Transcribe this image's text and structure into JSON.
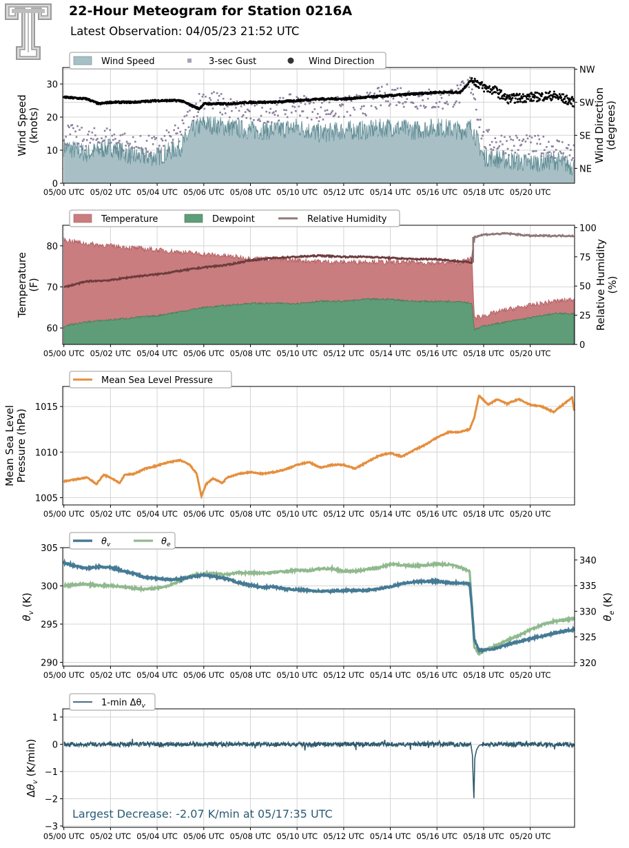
{
  "header": {
    "title": "22-Hour Meteogram for Station 0216A",
    "subtitle": "Latest Observation: 04/05/23 21:52 UTC",
    "logo_letter": "T"
  },
  "colors": {
    "wind_speed_fill": "#a7bfc5",
    "wind_speed_line": "#5f8c94",
    "gust": "#8a7e9c",
    "wind_dir": "#000000",
    "temperature": "#c97d7f",
    "temperature_edge": "#b05a5e",
    "dewpoint": "#5e9d78",
    "dewpoint_edge": "#3f7a56",
    "rh": "#8f7878",
    "rh_dark": "#6e3c3c",
    "mslp": "#e58e3c",
    "theta_v": "#457a94",
    "theta_e": "#90b98e",
    "dtheta": "#2f5a6e",
    "annotation": "#2a5a74"
  },
  "x_tick_labels": [
    "05/00 UTC",
    "05/02 UTC",
    "05/04 UTC",
    "05/06 UTC",
    "05/08 UTC",
    "05/10 UTC",
    "05/12 UTC",
    "05/14 UTC",
    "05/16 UTC",
    "05/18 UTC",
    "05/20 UTC"
  ],
  "chart_data": [
    {
      "type": "line",
      "id": "wind",
      "x_unit": "hours since 05/00 UTC",
      "xlim": [
        -0.05,
        21.9
      ],
      "ylim": [
        0,
        35
      ],
      "ylabel": "Wind Speed\n(knots)",
      "y_ticks": [
        0,
        10,
        20,
        30
      ],
      "y2label": "Wind Direction\n(degrees)",
      "y2_ticks": [
        "NE",
        "SE",
        "SW",
        "NW"
      ],
      "y2_tick_values": [
        0,
        1,
        2,
        3
      ],
      "y2lim": [
        -0.45,
        3.05
      ],
      "legend": [
        "Wind Speed",
        "3-sec Gust",
        "Wind Direction"
      ],
      "legend_position": "top-left",
      "grid": true,
      "series": [
        {
          "name": "Wind Speed",
          "x": [
            0,
            1,
            2,
            3,
            4,
            5,
            5.5,
            6,
            7,
            8,
            9,
            10,
            11,
            12,
            13,
            14,
            15,
            16,
            17,
            17.5,
            18,
            19,
            20,
            21,
            21.9
          ],
          "values": [
            11,
            9,
            11,
            8,
            8,
            11,
            16,
            18,
            17,
            16,
            16,
            17,
            15,
            16,
            16,
            17,
            16,
            17,
            16,
            17,
            8,
            7,
            6,
            7,
            5
          ]
        },
        {
          "name": "3-sec Gust",
          "x": [
            0,
            1,
            2,
            3,
            4,
            5,
            5.5,
            6,
            7,
            8,
            9,
            10,
            11,
            12,
            13,
            14,
            15,
            16,
            17,
            17.5,
            18,
            19,
            20,
            21,
            21.9
          ],
          "values": [
            15,
            13,
            14,
            11,
            11,
            15,
            22,
            26,
            23,
            21,
            22,
            24,
            22,
            23,
            24,
            27,
            26,
            25,
            27,
            30,
            13,
            12,
            11,
            11,
            9
          ]
        },
        {
          "name": "Wind Direction",
          "x": [
            0,
            1,
            1.5,
            2,
            3,
            4,
            5,
            5.8,
            6,
            7,
            8,
            9,
            10,
            11,
            12,
            13,
            14,
            15,
            16,
            17,
            17.5,
            18,
            18.5,
            19,
            20,
            21,
            21.9
          ],
          "values": [
            2.15,
            2.1,
            1.95,
            2.0,
            2.0,
            2.05,
            2.05,
            1.8,
            1.95,
            1.95,
            2.0,
            2.0,
            2.05,
            2.1,
            2.1,
            2.15,
            2.2,
            2.25,
            2.3,
            2.3,
            2.7,
            2.45,
            2.35,
            2.1,
            2.15,
            2.2,
            2.0
          ]
        }
      ]
    },
    {
      "type": "area",
      "id": "thermo",
      "x_unit": "hours since 05/00 UTC",
      "xlim": [
        -0.05,
        21.9
      ],
      "ylim": [
        56,
        85
      ],
      "ylabel": "Temperature\n(F)",
      "y_ticks": [
        60,
        70,
        80
      ],
      "y2label": "Relative Humidity\n(%)",
      "y2lim": [
        0,
        102
      ],
      "y2_ticks": [
        0,
        25,
        50,
        75,
        100
      ],
      "legend": [
        "Temperature",
        "Dewpoint",
        "Relative Humidity"
      ],
      "legend_position": "top-left",
      "grid": true,
      "series": [
        {
          "name": "Temperature",
          "x": [
            0,
            1,
            2,
            3,
            4,
            5,
            6,
            7,
            8,
            9,
            10,
            11,
            12,
            13,
            14,
            15,
            16,
            17,
            17.5,
            17.6,
            18,
            19,
            20,
            21,
            21.9
          ],
          "values": [
            81.5,
            80.5,
            80,
            79.5,
            79,
            78.5,
            78,
            77.5,
            77,
            76.8,
            76.5,
            76.2,
            76,
            76.2,
            76,
            76,
            75.8,
            76,
            77,
            62.5,
            63,
            64.5,
            65.5,
            66.5,
            67
          ]
        },
        {
          "name": "Dewpoint",
          "x": [
            0,
            1,
            2,
            3,
            4,
            5,
            6,
            7,
            8,
            9,
            10,
            11,
            12,
            13,
            14,
            15,
            16,
            17,
            17.5,
            17.6,
            18,
            19,
            20,
            21,
            21.9
          ],
          "values": [
            60.5,
            61.5,
            62,
            62.5,
            63,
            64,
            65,
            65.5,
            66,
            66,
            66,
            66.5,
            66.5,
            67,
            67,
            66.5,
            66.5,
            66.5,
            66,
            59.5,
            60.5,
            61.5,
            62.5,
            63.5,
            63.5
          ]
        },
        {
          "name": "Relative Humidity",
          "x": [
            0,
            1,
            2,
            3,
            4,
            5,
            6,
            7,
            8,
            9,
            10,
            11,
            12,
            13,
            14,
            15,
            16,
            17,
            17.5,
            17.6,
            18,
            19,
            20,
            21,
            21.9
          ],
          "values": [
            49,
            54,
            55,
            58,
            60,
            63,
            66,
            68,
            72,
            74,
            75,
            76,
            75,
            75,
            74,
            73,
            73,
            71,
            70,
            92,
            94,
            95,
            93,
            93,
            93
          ]
        }
      ]
    },
    {
      "type": "line",
      "id": "pressure",
      "x_unit": "hours since 05/00 UTC",
      "xlim": [
        -0.05,
        21.9
      ],
      "ylim": [
        1004.2,
        1017.2
      ],
      "ylabel": "Mean Sea Level\nPressure (hPa)",
      "y_ticks": [
        1005,
        1010,
        1015
      ],
      "legend": [
        "Mean Sea Level Pressure"
      ],
      "legend_position": "top-left",
      "grid": true,
      "series": [
        {
          "name": "Mean Sea Level Pressure",
          "x": [
            0,
            0.5,
            1,
            1.4,
            1.7,
            2,
            2.4,
            2.6,
            3,
            3.5,
            4,
            4.5,
            5,
            5.4,
            5.7,
            5.9,
            6.1,
            6.4,
            6.8,
            7,
            7.5,
            8,
            8.5,
            9,
            9.5,
            10,
            10.5,
            11,
            11.5,
            12,
            12.5,
            13,
            13.5,
            14,
            14.5,
            15,
            15.5,
            16,
            16.5,
            17,
            17.4,
            17.6,
            17.8,
            18.2,
            18.6,
            19,
            19.5,
            20,
            20.5,
            21,
            21.5,
            21.8,
            21.9
          ],
          "values": [
            1006.8,
            1007,
            1007.2,
            1006.5,
            1007.5,
            1007.2,
            1006.6,
            1007.5,
            1007.6,
            1008.2,
            1008.5,
            1008.9,
            1009.1,
            1008.6,
            1007.6,
            1005.1,
            1006.5,
            1007.1,
            1006.6,
            1007.2,
            1007.6,
            1007.8,
            1007.6,
            1007.8,
            1008.1,
            1008.6,
            1008.9,
            1008.3,
            1008.6,
            1008.6,
            1008.2,
            1008.9,
            1009.6,
            1009.9,
            1009.5,
            1010.2,
            1010.8,
            1011.6,
            1012.2,
            1012.2,
            1012.5,
            1013.8,
            1016.2,
            1015.2,
            1015.8,
            1015.3,
            1015.8,
            1015.2,
            1015,
            1014.4,
            1015.4,
            1016,
            1014.2
          ]
        }
      ]
    },
    {
      "type": "line",
      "id": "theta",
      "x_unit": "hours since 05/00 UTC",
      "xlim": [
        -0.05,
        21.9
      ],
      "ylim": [
        289.5,
        305
      ],
      "ylabel": "θv (K)",
      "y_ticks": [
        290,
        295,
        300,
        305
      ],
      "y2label": "θe (K)",
      "y2lim": [
        319.3,
        342.4
      ],
      "y2_ticks": [
        320,
        325,
        330,
        335,
        340
      ],
      "legend": [
        "θv",
        "θe"
      ],
      "legend_position": "top-left",
      "grid": true,
      "series": [
        {
          "name": "θv",
          "x": [
            0,
            0.5,
            1,
            1.5,
            2,
            2.5,
            3,
            3.5,
            4,
            4.5,
            5,
            5.5,
            6,
            6.5,
            7,
            7.5,
            8,
            8.5,
            9,
            9.5,
            10,
            10.5,
            11,
            11.5,
            12,
            12.5,
            13,
            13.5,
            14,
            14.5,
            15,
            15.5,
            16,
            16.5,
            17,
            17.4,
            17.5,
            17.6,
            17.8,
            18,
            18.5,
            19,
            19.5,
            20,
            20.5,
            21,
            21.5,
            21.9
          ],
          "values": [
            303,
            302.6,
            302.3,
            302.5,
            302.4,
            302,
            301.6,
            301.1,
            301,
            300.8,
            300.9,
            301.2,
            301.4,
            301.2,
            300.9,
            300.4,
            300.1,
            299.8,
            299.9,
            299.6,
            299.5,
            299.4,
            299.3,
            299.3,
            299.4,
            299.4,
            299.4,
            299.6,
            299.9,
            300.3,
            300.5,
            300.6,
            300.6,
            300.4,
            300.4,
            300.3,
            297,
            293,
            291.6,
            291.6,
            291.8,
            292.3,
            292.7,
            293.1,
            293.4,
            293.8,
            294.1,
            294.3
          ]
        },
        {
          "name": "θe",
          "x": [
            0,
            0.5,
            1,
            1.5,
            2,
            2.5,
            3,
            3.5,
            4,
            4.5,
            5,
            5.5,
            6,
            6.5,
            7,
            7.5,
            8,
            8.5,
            9,
            9.5,
            10,
            10.5,
            11,
            11.5,
            12,
            12.5,
            13,
            13.5,
            14,
            14.5,
            15,
            15.5,
            16,
            16.5,
            17,
            17.4,
            17.5,
            17.6,
            17.8,
            18,
            18.5,
            19,
            19.5,
            20,
            20.5,
            21,
            21.5,
            21.9
          ],
          "values": [
            335,
            335.2,
            335.3,
            335,
            335,
            334.8,
            334.5,
            334.3,
            334.5,
            335,
            336,
            337,
            337.3,
            337.3,
            337.2,
            337.5,
            337.5,
            337.4,
            337.6,
            337.8,
            338,
            337.9,
            338.3,
            338.3,
            337.8,
            337.8,
            338.2,
            338.5,
            339.2,
            339,
            338.8,
            339,
            339.2,
            339.1,
            338.6,
            337.8,
            331,
            323,
            321.6,
            322.3,
            323.2,
            324.3,
            325.3,
            326.4,
            327.4,
            328,
            328.3,
            328.6
          ]
        }
      ]
    },
    {
      "type": "line",
      "id": "dtheta",
      "x_unit": "hours since 05/00 UTC",
      "xlim": [
        -0.05,
        21.9
      ],
      "ylim": [
        -3.05,
        1.3
      ],
      "ylabel": "Δθv (K/min)",
      "y_ticks": [
        -3,
        -2,
        -1,
        0,
        1
      ],
      "legend": [
        "1-min Δθv"
      ],
      "legend_position": "top-left",
      "grid": true,
      "annotation": "Largest Decrease: -2.07 K/min at 05/17:35 UTC",
      "series": [
        {
          "name": "1-min Δθv",
          "x": [
            0,
            17.45,
            17.52,
            17.583,
            17.62,
            17.7,
            17.8,
            17.95,
            21.9
          ],
          "values": [
            0,
            0,
            -0.4,
            -2.07,
            -0.5,
            -0.2,
            -0.05,
            0,
            0
          ]
        }
      ]
    }
  ]
}
